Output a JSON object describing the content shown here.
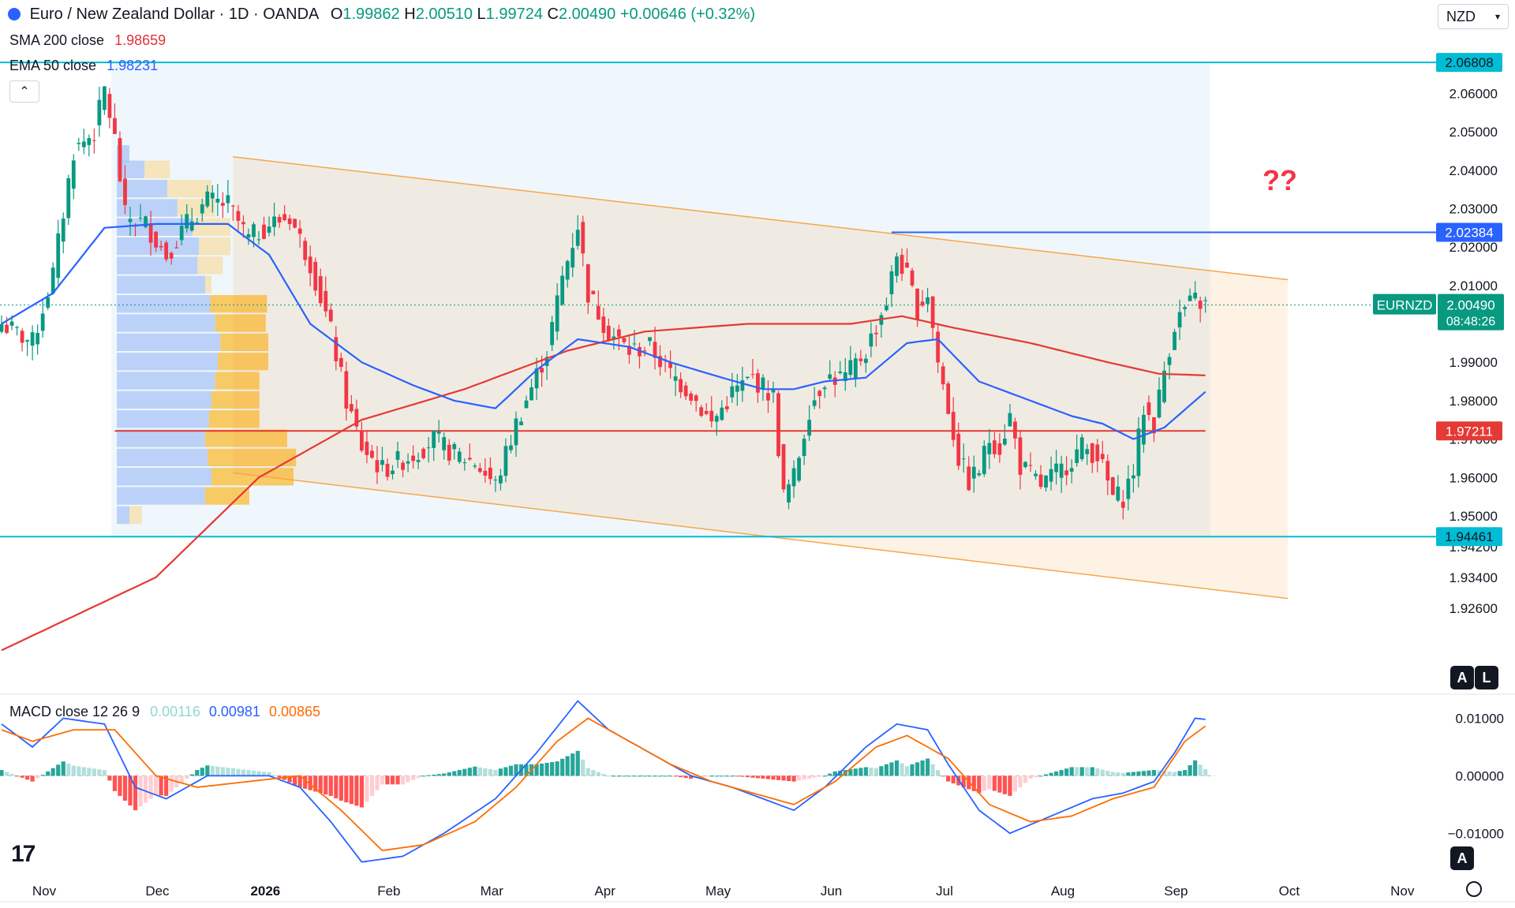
{
  "header": {
    "symbol_title": "Euro / New Zealand Dollar · 1D · OANDA",
    "ohlc": {
      "o_label": "O",
      "o": "1.99862",
      "h_label": "H",
      "h": "2.00510",
      "l_label": "L",
      "l": "1.99724",
      "c_label": "C",
      "c": "2.00490",
      "change": "+0.00646 (+0.32%)"
    },
    "sma_label": "SMA 200 close",
    "sma_value": "1.98659",
    "ema_label": "EMA 50 close",
    "ema_value": "1.98231",
    "currency": "NZD",
    "collapse_glyph": "⌃"
  },
  "annotation": "??",
  "price_tags": {
    "symbol": "EURNZD",
    "current": "2.00490",
    "countdown": "08:48:26"
  },
  "macd_header": {
    "label": "MACD close 12 26 9",
    "hist": "0.00116",
    "macd": "0.00981",
    "signal": "0.00865"
  },
  "badges": {
    "auto": "A",
    "log": "L",
    "macd_auto": "A"
  },
  "logo_text": "17",
  "colors": {
    "up": "#089981",
    "down": "#f23645",
    "sma": "#e53935",
    "ema": "#2962ff",
    "hline_cyan": "#00bcd4",
    "hline_blue": "#2962ff",
    "hline_red": "#e53935",
    "channel": "#f7a64a",
    "macd_line": "#2962ff",
    "signal_line": "#ff6d00",
    "annotation": "#f23645"
  },
  "chart_data": {
    "type": "candlestick",
    "instrument": "EURNZD",
    "timeframe": "1D",
    "y_ticks": [
      "2.06000",
      "2.05000",
      "2.04000",
      "2.03000",
      "2.02000",
      "2.01000",
      "1.99000",
      "1.98000",
      "1.97000",
      "1.96000",
      "1.95000",
      "1.94200",
      "1.93400",
      "1.92600"
    ],
    "ylim": [
      1.92,
      2.072
    ],
    "x_ticks": [
      {
        "label": "Nov",
        "x": 0
      },
      {
        "label": "Dec",
        "x": 22
      },
      {
        "label": "2026",
        "x": 43
      },
      {
        "label": "Feb",
        "x": 67
      },
      {
        "label": "Mar",
        "x": 87
      },
      {
        "label": "Apr",
        "x": 109
      },
      {
        "label": "May",
        "x": 131
      },
      {
        "label": "Jun",
        "x": 153
      },
      {
        "label": "Jul",
        "x": 175
      },
      {
        "label": "Aug",
        "x": 198
      },
      {
        "label": "Sep",
        "x": 220
      },
      {
        "label": "Oct",
        "x": 242
      },
      {
        "label": "Nov",
        "x": 264
      }
    ],
    "candles_close_start": 2.0,
    "candle_count": 235,
    "path": [
      [
        0,
        2.0
      ],
      [
        6,
        1.995
      ],
      [
        10,
        2.013
      ],
      [
        14,
        2.045
      ],
      [
        18,
        2.05
      ],
      [
        20,
        2.061
      ],
      [
        22,
        2.048
      ],
      [
        24,
        2.028
      ],
      [
        28,
        2.026
      ],
      [
        32,
        2.018
      ],
      [
        36,
        2.026
      ],
      [
        40,
        2.032
      ],
      [
        44,
        2.031
      ],
      [
        48,
        2.022
      ],
      [
        52,
        2.026
      ],
      [
        56,
        2.028
      ],
      [
        60,
        2.016
      ],
      [
        64,
        1.998
      ],
      [
        67,
        1.98
      ],
      [
        70,
        1.968
      ],
      [
        74,
        1.962
      ],
      [
        80,
        1.966
      ],
      [
        84,
        1.97
      ],
      [
        88,
        1.966
      ],
      [
        92,
        1.964
      ],
      [
        96,
        1.958
      ],
      [
        100,
        1.974
      ],
      [
        106,
        1.993
      ],
      [
        109,
        2.012
      ],
      [
        112,
        2.026
      ],
      [
        114,
        2.008
      ],
      [
        118,
        1.998
      ],
      [
        122,
        1.993
      ],
      [
        126,
        1.994
      ],
      [
        130,
        1.987
      ],
      [
        134,
        1.982
      ],
      [
        138,
        1.974
      ],
      [
        142,
        1.982
      ],
      [
        146,
        1.986
      ],
      [
        150,
        1.981
      ],
      [
        152,
        1.955
      ],
      [
        154,
        1.96
      ],
      [
        157,
        1.978
      ],
      [
        160,
        1.986
      ],
      [
        164,
        1.986
      ],
      [
        168,
        1.993
      ],
      [
        172,
        2.006
      ],
      [
        174,
        2.018
      ],
      [
        176,
        2.012
      ],
      [
        178,
        2.004
      ],
      [
        180,
        2.008
      ],
      [
        182,
        1.99
      ],
      [
        184,
        1.978
      ],
      [
        186,
        1.965
      ],
      [
        188,
        1.959
      ],
      [
        190,
        1.962
      ],
      [
        192,
        1.97
      ],
      [
        194,
        1.968
      ],
      [
        196,
        1.976
      ],
      [
        198,
        1.963
      ],
      [
        202,
        1.958
      ],
      [
        206,
        1.962
      ],
      [
        210,
        1.968
      ],
      [
        213,
        1.966
      ],
      [
        216,
        1.955
      ],
      [
        218,
        1.955
      ],
      [
        220,
        1.962
      ],
      [
        222,
        1.978
      ],
      [
        224,
        1.974
      ],
      [
        226,
        1.988
      ],
      [
        228,
        2.0
      ],
      [
        230,
        2.004
      ],
      [
        232,
        2.006
      ],
      [
        234,
        2.0049
      ]
    ],
    "sma200_path": [
      [
        0,
        1.915
      ],
      [
        30,
        1.934
      ],
      [
        50,
        1.96
      ],
      [
        70,
        1.975
      ],
      [
        90,
        1.983
      ],
      [
        110,
        1.993
      ],
      [
        125,
        1.998
      ],
      [
        145,
        2.0
      ],
      [
        165,
        2.0
      ],
      [
        175,
        2.002
      ],
      [
        185,
        1.999
      ],
      [
        200,
        1.995
      ],
      [
        215,
        1.99
      ],
      [
        225,
        1.987
      ],
      [
        234,
        1.98659
      ]
    ],
    "ema50_path": [
      [
        0,
        2.0
      ],
      [
        10,
        2.008
      ],
      [
        20,
        2.025
      ],
      [
        30,
        2.026
      ],
      [
        44,
        2.026
      ],
      [
        52,
        2.018
      ],
      [
        60,
        2.0
      ],
      [
        70,
        1.99
      ],
      [
        80,
        1.984
      ],
      [
        88,
        1.98
      ],
      [
        96,
        1.978
      ],
      [
        104,
        1.988
      ],
      [
        112,
        1.996
      ],
      [
        122,
        1.994
      ],
      [
        130,
        1.99
      ],
      [
        140,
        1.986
      ],
      [
        148,
        1.983
      ],
      [
        154,
        1.983
      ],
      [
        160,
        1.985
      ],
      [
        168,
        1.986
      ],
      [
        176,
        1.995
      ],
      [
        182,
        1.996
      ],
      [
        190,
        1.985
      ],
      [
        200,
        1.98
      ],
      [
        208,
        1.976
      ],
      [
        214,
        1.974
      ],
      [
        220,
        1.97
      ],
      [
        226,
        1.973
      ],
      [
        234,
        1.98231
      ]
    ],
    "horizontal_levels": [
      {
        "value": "2.06808",
        "color": "cyan"
      },
      {
        "value": "2.02384",
        "color": "blue"
      },
      {
        "value": "1.97211",
        "color": "red"
      },
      {
        "value": "1.94461",
        "color": "cyan"
      }
    ],
    "channel": {
      "upper": [
        [
          45,
          2.0435
        ],
        [
          250,
          2.0115
        ]
      ],
      "lower": [
        [
          45,
          1.9612
        ],
        [
          250,
          1.9285
        ]
      ]
    },
    "volume_profile": {
      "price_rows": [
        2.044,
        2.04,
        2.035,
        2.03,
        2.025,
        2.02,
        2.015,
        2.01,
        2.005,
        2.0,
        1.995,
        1.99,
        1.985,
        1.98,
        1.975,
        1.97,
        1.965,
        1.96,
        1.955,
        1.95
      ],
      "up_volume": [
        10,
        22,
        40,
        48,
        60,
        65,
        64,
        70,
        74,
        78,
        82,
        80,
        78,
        75,
        73,
        70,
        72,
        75,
        70,
        10
      ],
      "down_volume": [
        0,
        20,
        35,
        30,
        30,
        25,
        20,
        5,
        45,
        40,
        38,
        40,
        35,
        38,
        40,
        65,
        70,
        65,
        35,
        10
      ]
    },
    "macd": {
      "y_ticks": [
        "0.01000",
        "0.00000",
        "−0.01000"
      ],
      "ylim": [
        -0.016,
        0.0135
      ],
      "macd_path": [
        [
          0,
          0.009
        ],
        [
          6,
          0.005
        ],
        [
          12,
          0.01
        ],
        [
          20,
          0.009
        ],
        [
          26,
          -0.002
        ],
        [
          32,
          -0.004
        ],
        [
          40,
          0.0
        ],
        [
          52,
          0.0
        ],
        [
          58,
          -0.002
        ],
        [
          64,
          -0.008
        ],
        [
          70,
          -0.015
        ],
        [
          78,
          -0.014
        ],
        [
          86,
          -0.01
        ],
        [
          96,
          -0.004
        ],
        [
          104,
          0.004
        ],
        [
          112,
          0.013
        ],
        [
          118,
          0.008
        ],
        [
          126,
          0.004
        ],
        [
          134,
          0.0
        ],
        [
          142,
          -0.002
        ],
        [
          148,
          -0.004
        ],
        [
          154,
          -0.006
        ],
        [
          160,
          -0.002
        ],
        [
          168,
          0.005
        ],
        [
          174,
          0.009
        ],
        [
          180,
          0.008
        ],
        [
          184,
          0.002
        ],
        [
          190,
          -0.006
        ],
        [
          196,
          -0.01
        ],
        [
          204,
          -0.007
        ],
        [
          212,
          -0.004
        ],
        [
          218,
          -0.003
        ],
        [
          224,
          -0.001
        ],
        [
          228,
          0.004
        ],
        [
          232,
          0.01
        ],
        [
          234,
          0.00981
        ]
      ],
      "signal_path": [
        [
          0,
          0.008
        ],
        [
          6,
          0.006
        ],
        [
          14,
          0.008
        ],
        [
          22,
          0.008
        ],
        [
          30,
          0.0
        ],
        [
          38,
          -0.002
        ],
        [
          48,
          -0.001
        ],
        [
          58,
          0.0
        ],
        [
          66,
          -0.006
        ],
        [
          74,
          -0.013
        ],
        [
          82,
          -0.012
        ],
        [
          92,
          -0.008
        ],
        [
          100,
          -0.002
        ],
        [
          108,
          0.006
        ],
        [
          114,
          0.01
        ],
        [
          122,
          0.006
        ],
        [
          130,
          0.002
        ],
        [
          138,
          -0.001
        ],
        [
          146,
          -0.003
        ],
        [
          154,
          -0.005
        ],
        [
          162,
          -0.001
        ],
        [
          170,
          0.005
        ],
        [
          176,
          0.007
        ],
        [
          184,
          0.003
        ],
        [
          192,
          -0.005
        ],
        [
          200,
          -0.008
        ],
        [
          208,
          -0.007
        ],
        [
          216,
          -0.004
        ],
        [
          224,
          -0.002
        ],
        [
          230,
          0.006
        ],
        [
          234,
          0.00865
        ]
      ]
    }
  }
}
